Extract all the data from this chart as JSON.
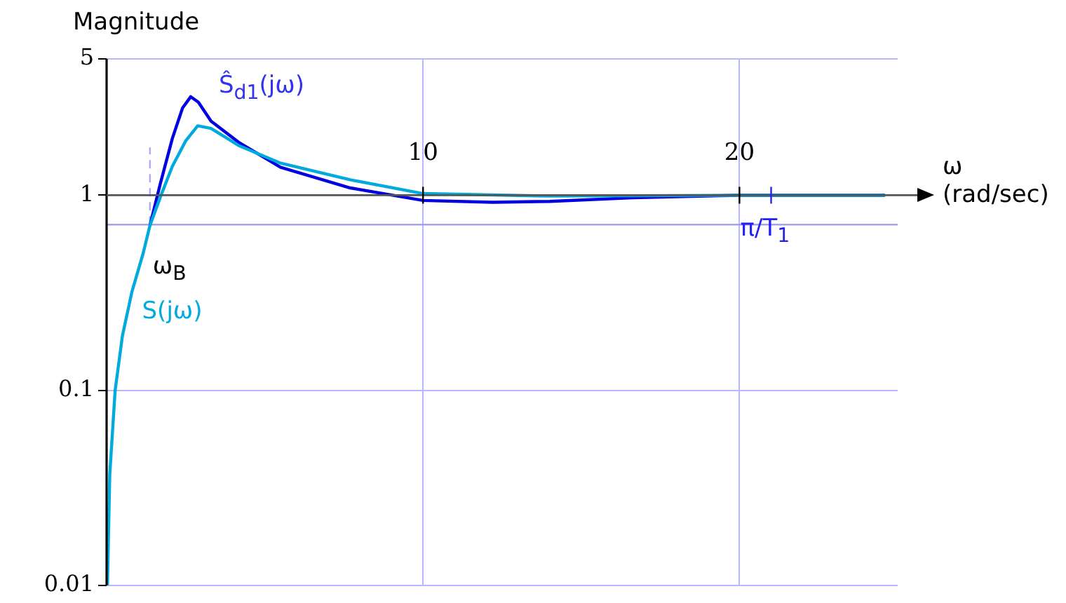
{
  "chart_data": {
    "type": "line",
    "ylabel": "Magnitude",
    "xlabel": "ω\n(rad/sec)",
    "xlim": [
      0,
      25
    ],
    "xticks": [
      10,
      20
    ],
    "ylim": [
      0.01,
      5
    ],
    "yticks": [
      0.01,
      0.1,
      1,
      5
    ],
    "log": "y",
    "grid": true,
    "legend": false,
    "marker": "none",
    "line_style": "solid",
    "series": [
      {
        "name": "Ŝ$_{d1}$(jω)",
        "color": "#0000e0",
        "x": [
          1.37,
          1.7,
          2.08,
          2.4,
          2.66,
          2.9,
          3.3,
          4.17,
          5.5,
          7.7,
          10,
          12.2,
          14,
          16.6,
          20,
          24.6
        ],
        "values": [
          0.7,
          1.15,
          1.96,
          2.8,
          3.2,
          3.0,
          2.4,
          1.87,
          1.39,
          1.09,
          0.94,
          0.92,
          0.93,
          0.97,
          1.0,
          1.0
        ]
      },
      {
        "name": "S(jω)",
        "color": "#00aadd",
        "x": [
          0.027,
          0.1,
          0.27,
          0.5,
          0.8,
          1.15,
          1.37,
          1.7,
          2.08,
          2.5,
          2.88,
          3.3,
          4.17,
          5.5,
          7.7,
          10,
          14,
          20,
          24.6
        ],
        "values": [
          0.01,
          0.037,
          0.1,
          0.19,
          0.32,
          0.5,
          0.7,
          0.98,
          1.41,
          1.9,
          2.27,
          2.2,
          1.8,
          1.46,
          1.2,
          1.02,
          0.99,
          1.0,
          1.0
        ]
      }
    ],
    "ref_lines": [
      {
        "axis": "x",
        "value": 1.37,
        "label": "ω$_{B}$",
        "color": "#aaaaff",
        "line_style": "dashed"
      },
      {
        "axis": "y",
        "value": 0.707,
        "color": "#9999ee",
        "line_style": "solid"
      }
    ],
    "annotations": [
      {
        "text": "π/T$_{1}$",
        "x": 21,
        "y": 1
      }
    ]
  }
}
